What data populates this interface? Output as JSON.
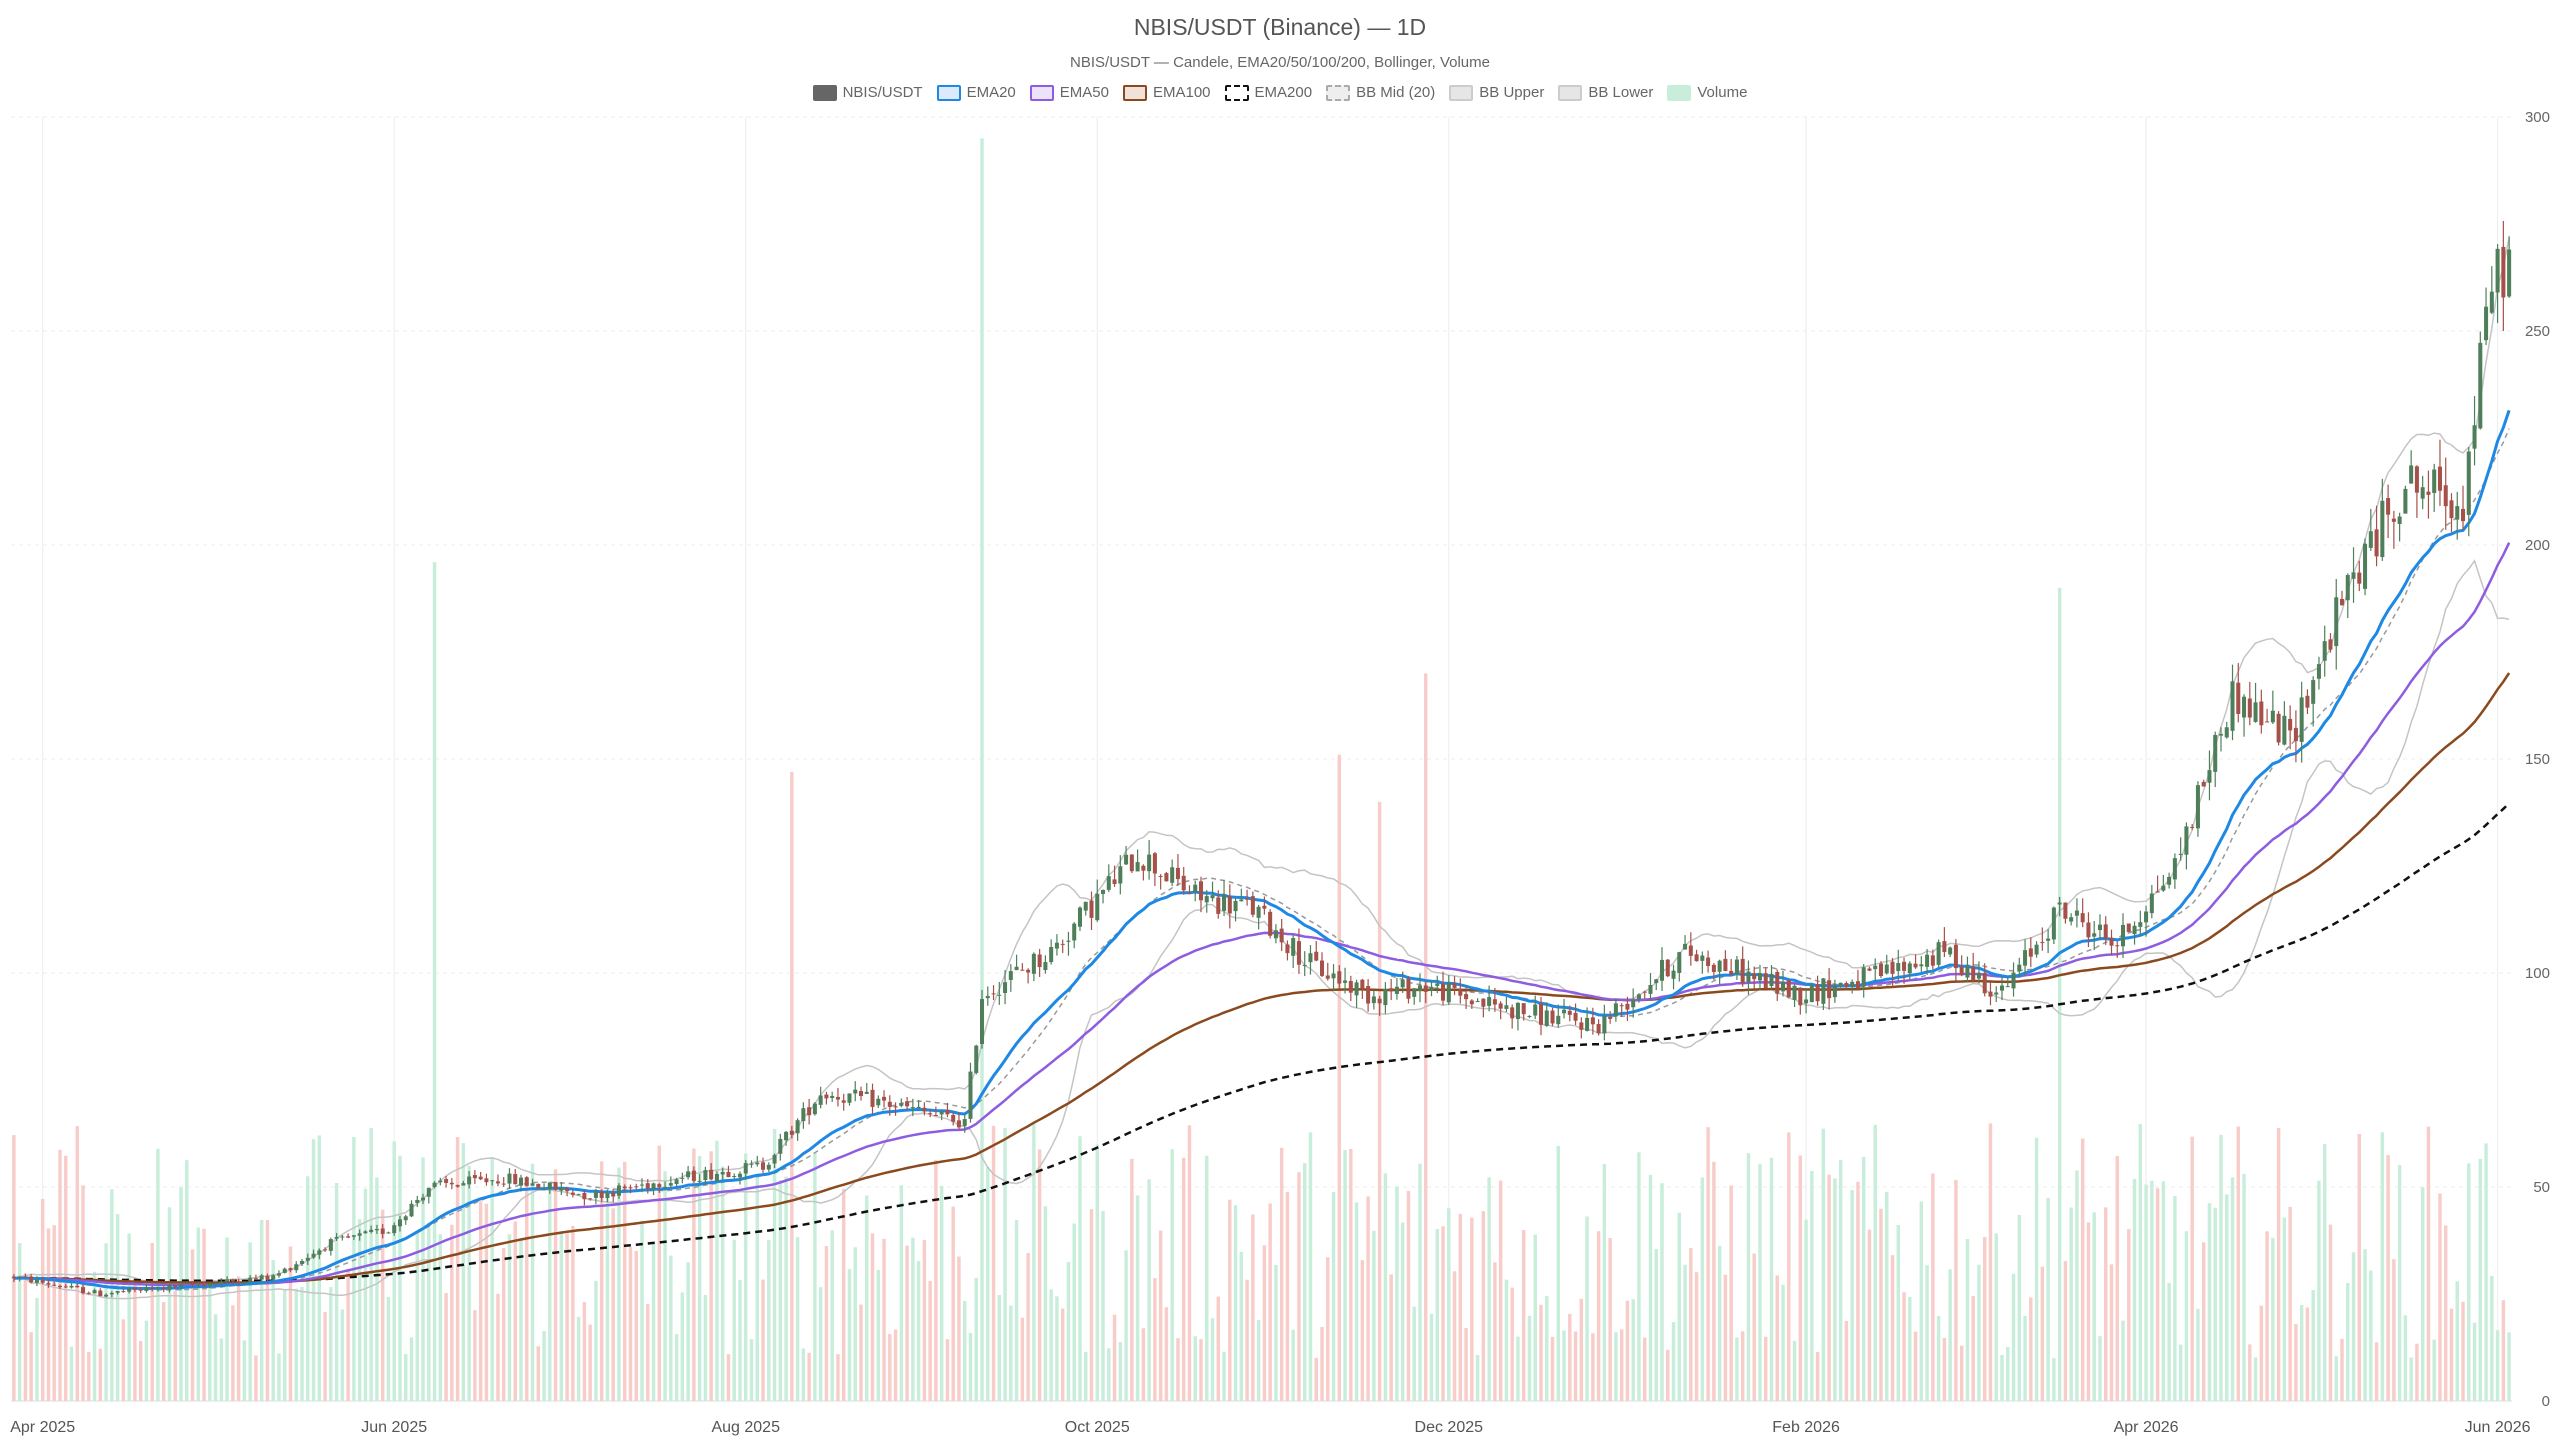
{
  "chart_data": {
    "type": "candlestick",
    "title": "NBIS/USDT (Binance) — 1D",
    "subtitle": "NBIS/USDT — Candele, EMA20/50/100/200, Bollinger, Volume",
    "legend": [
      {
        "name": "NBIS/USDT",
        "color": "#666666",
        "fill": "#666666",
        "dash": false
      },
      {
        "name": "EMA20",
        "color": "#1E88E5",
        "fill": "#dbeafc",
        "dash": false
      },
      {
        "name": "EMA50",
        "color": "#8E5CE0",
        "fill": "#ece3fa",
        "dash": false
      },
      {
        "name": "EMA100",
        "color": "#8B4A1E",
        "fill": "#f0e2d8",
        "dash": false
      },
      {
        "name": "EMA200",
        "color": "#111111",
        "fill": "#ffffff",
        "dash": true
      },
      {
        "name": "BB Mid (20)",
        "color": "#aaaaaa",
        "fill": "#eeeeee",
        "dash": true
      },
      {
        "name": "BB Upper",
        "color": "#cccccc",
        "fill": "#e6e6e6",
        "dash": false
      },
      {
        "name": "BB Lower",
        "color": "#cccccc",
        "fill": "#e6e6e6",
        "dash": false
      },
      {
        "name": "Volume",
        "color": "#c8eedb",
        "fill": "#c8eedb",
        "dash": false
      }
    ],
    "x_ticks": [
      {
        "label": "Apr 2025",
        "day": 5
      },
      {
        "label": "Jun 2025",
        "day": 66
      },
      {
        "label": "Aug 2025",
        "day": 127
      },
      {
        "label": "Oct 2025",
        "day": 188
      },
      {
        "label": "Dec 2025",
        "day": 249
      },
      {
        "label": "Feb 2026",
        "day": 311
      },
      {
        "label": "Apr 2026",
        "day": 370
      },
      {
        "label": "Jun 2026",
        "day": 431
      }
    ],
    "y_ticks": [
      0,
      50,
      100,
      150,
      200,
      250,
      300
    ],
    "ylim": [
      0,
      300
    ],
    "colors": {
      "up": "#4f7f5a",
      "down": "#a5514a",
      "vol_up": "#c8eedb",
      "vol_down": "#f8cdc9",
      "grid": "#ececec"
    },
    "price_anchors": [
      [
        0,
        29
      ],
      [
        15,
        25
      ],
      [
        30,
        27
      ],
      [
        45,
        29
      ],
      [
        55,
        37
      ],
      [
        65,
        40
      ],
      [
        72,
        50
      ],
      [
        85,
        52
      ],
      [
        100,
        48
      ],
      [
        115,
        52
      ],
      [
        130,
        55
      ],
      [
        140,
        72
      ],
      [
        150,
        70
      ],
      [
        165,
        65
      ],
      [
        168,
        95
      ],
      [
        180,
        105
      ],
      [
        195,
        128
      ],
      [
        205,
        118
      ],
      [
        215,
        115
      ],
      [
        225,
        102
      ],
      [
        235,
        95
      ],
      [
        245,
        97
      ],
      [
        255,
        93
      ],
      [
        265,
        90
      ],
      [
        275,
        88
      ],
      [
        290,
        105
      ],
      [
        310,
        95
      ],
      [
        325,
        100
      ],
      [
        335,
        105
      ],
      [
        345,
        95
      ],
      [
        355,
        115
      ],
      [
        365,
        107
      ],
      [
        375,
        125
      ],
      [
        385,
        165
      ],
      [
        395,
        155
      ],
      [
        405,
        190
      ],
      [
        415,
        215
      ],
      [
        425,
        210
      ],
      [
        430,
        262
      ],
      [
        434,
        268
      ]
    ],
    "volume_peaks": [
      [
        73,
        196
      ],
      [
        168,
        295
      ],
      [
        135,
        147
      ],
      [
        230,
        151
      ],
      [
        245,
        170
      ],
      [
        237,
        140
      ],
      [
        355,
        190
      ]
    ],
    "volume_max": 300
  }
}
